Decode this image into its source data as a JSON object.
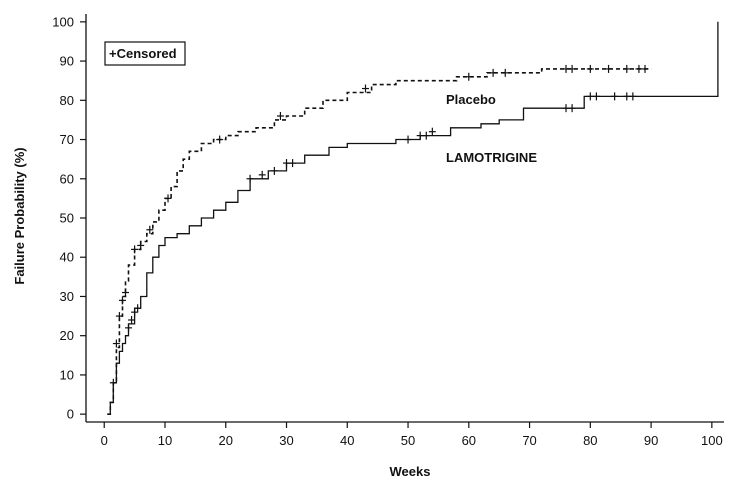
{
  "chart_data": {
    "type": "line",
    "xlabel": "Weeks",
    "ylabel": "Failure Probability (%)",
    "xlim": [
      -3,
      102
    ],
    "ylim": [
      -2,
      102
    ],
    "x_ticks": [
      0,
      10,
      20,
      30,
      40,
      50,
      60,
      70,
      80,
      90,
      100
    ],
    "y_ticks": [
      0,
      10,
      20,
      30,
      40,
      50,
      60,
      70,
      80,
      90,
      100
    ],
    "legend": {
      "text": "+Censored",
      "position": "top-left"
    },
    "series": [
      {
        "name": "Placebo",
        "style": "dashed",
        "points": [
          [
            0.5,
            0
          ],
          [
            1,
            3
          ],
          [
            1.5,
            8
          ],
          [
            2,
            17
          ],
          [
            2.5,
            25
          ],
          [
            3,
            30
          ],
          [
            3.5,
            34
          ],
          [
            4,
            38
          ],
          [
            5,
            42
          ],
          [
            6,
            44
          ],
          [
            7,
            46
          ],
          [
            8,
            49
          ],
          [
            9,
            52
          ],
          [
            10,
            55
          ],
          [
            11,
            58
          ],
          [
            12,
            62
          ],
          [
            13,
            65
          ],
          [
            14,
            67
          ],
          [
            16,
            69
          ],
          [
            18,
            70
          ],
          [
            20,
            71
          ],
          [
            22,
            72
          ],
          [
            25,
            73
          ],
          [
            28,
            75
          ],
          [
            30,
            76
          ],
          [
            33,
            78
          ],
          [
            36,
            80
          ],
          [
            40,
            82
          ],
          [
            44,
            84
          ],
          [
            48,
            85
          ],
          [
            54,
            85
          ],
          [
            58,
            86
          ],
          [
            63,
            87
          ],
          [
            68,
            87
          ],
          [
            72,
            88
          ],
          [
            90,
            88
          ]
        ],
        "censored": [
          [
            2,
            18
          ],
          [
            2.5,
            25
          ],
          [
            3,
            29
          ],
          [
            3.5,
            31
          ],
          [
            5,
            42
          ],
          [
            6,
            43
          ],
          [
            7.5,
            47
          ],
          [
            10.5,
            55
          ],
          [
            19,
            70
          ],
          [
            29,
            76
          ],
          [
            43,
            83
          ],
          [
            60,
            86
          ],
          [
            64,
            87
          ],
          [
            66,
            87
          ],
          [
            76,
            88
          ],
          [
            77,
            88
          ],
          [
            80,
            88
          ],
          [
            83,
            88
          ],
          [
            86,
            88
          ],
          [
            88,
            88
          ],
          [
            89,
            88
          ]
        ]
      },
      {
        "name": "LAMOTRIGINE",
        "style": "solid",
        "points": [
          [
            0.5,
            0
          ],
          [
            1,
            3
          ],
          [
            1.5,
            8
          ],
          [
            2,
            13
          ],
          [
            2.5,
            16
          ],
          [
            3,
            18
          ],
          [
            3.5,
            20
          ],
          [
            4,
            23
          ],
          [
            5,
            27
          ],
          [
            6,
            30
          ],
          [
            7,
            36
          ],
          [
            8,
            40
          ],
          [
            9,
            43
          ],
          [
            10,
            45
          ],
          [
            12,
            46
          ],
          [
            14,
            48
          ],
          [
            16,
            50
          ],
          [
            18,
            52
          ],
          [
            20,
            54
          ],
          [
            22,
            57
          ],
          [
            24,
            60
          ],
          [
            27,
            62
          ],
          [
            30,
            64
          ],
          [
            33,
            66
          ],
          [
            37,
            68
          ],
          [
            40,
            69
          ],
          [
            44,
            69
          ],
          [
            48,
            70
          ],
          [
            52,
            71
          ],
          [
            57,
            73
          ],
          [
            62,
            74
          ],
          [
            65,
            75
          ],
          [
            69,
            78
          ],
          [
            75,
            78
          ],
          [
            79,
            81
          ],
          [
            82,
            81
          ],
          [
            101,
            81
          ],
          [
            101,
            100
          ]
        ],
        "censored": [
          [
            1.5,
            8
          ],
          [
            4,
            22
          ],
          [
            4.5,
            24
          ],
          [
            5,
            26
          ],
          [
            5.5,
            27
          ],
          [
            24,
            60
          ],
          [
            26,
            61
          ],
          [
            28,
            62
          ],
          [
            30,
            64
          ],
          [
            31,
            64
          ],
          [
            50,
            70
          ],
          [
            52,
            71
          ],
          [
            53,
            71
          ],
          [
            54,
            72
          ],
          [
            76,
            78
          ],
          [
            77,
            78
          ],
          [
            80,
            81
          ],
          [
            81,
            81
          ],
          [
            84,
            81
          ],
          [
            86,
            81
          ],
          [
            87,
            81
          ]
        ]
      }
    ],
    "annotations": [
      {
        "text": "Placebo",
        "series": "Placebo"
      },
      {
        "text": "LAMOTRIGINE",
        "series": "LAMOTRIGINE"
      }
    ]
  }
}
